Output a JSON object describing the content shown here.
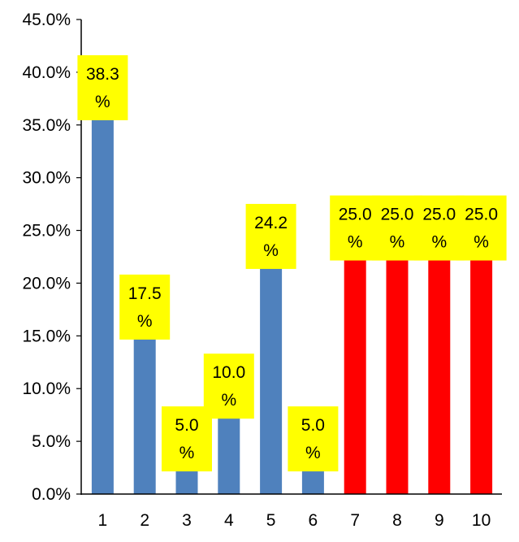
{
  "chart_data": {
    "type": "bar",
    "categories": [
      "1",
      "2",
      "3",
      "4",
      "5",
      "6",
      "7",
      "8",
      "9",
      "10"
    ],
    "values": [
      38.3,
      17.5,
      5.0,
      10.0,
      24.2,
      5.0,
      25.0,
      25.0,
      25.0,
      25.0
    ],
    "value_unit": "%",
    "data_labels": [
      [
        "38.3",
        "%"
      ],
      [
        "17.5",
        "%"
      ],
      [
        "5.0",
        "%"
      ],
      [
        "10.0",
        "%"
      ],
      [
        "24.2",
        "%"
      ],
      [
        "5.0",
        "%"
      ],
      [
        "25.0",
        "%"
      ],
      [
        "25.0",
        "%"
      ],
      [
        "25.0",
        "%"
      ],
      [
        "25.0",
        "%"
      ]
    ],
    "bar_colors": [
      "#4F81BD",
      "#4F81BD",
      "#4F81BD",
      "#4F81BD",
      "#4F81BD",
      "#4F81BD",
      "#FF0000",
      "#FF0000",
      "#FF0000",
      "#FF0000"
    ],
    "label_background": "#FFFF00",
    "ylim": [
      0,
      45
    ],
    "y_ticks": [
      "0.0%",
      "5.0%",
      "10.0%",
      "15.0%",
      "20.0%",
      "25.0%",
      "30.0%",
      "35.0%",
      "40.0%",
      "45.0%"
    ],
    "y_tick_values": [
      0,
      5,
      10,
      15,
      20,
      25,
      30,
      35,
      40,
      45
    ],
    "grid": false,
    "legend": "none",
    "title": "",
    "xlabel": "",
    "ylabel": ""
  }
}
